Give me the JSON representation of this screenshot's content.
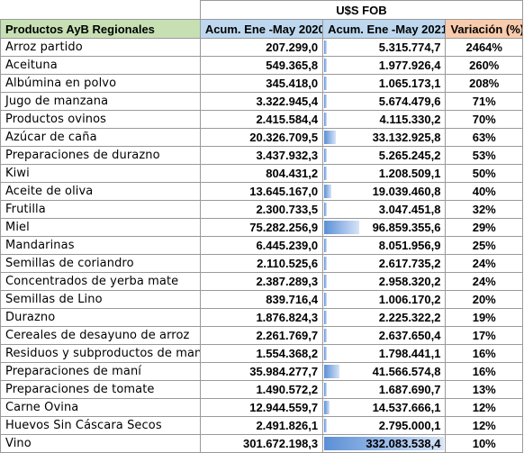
{
  "header": {
    "currency_label": "U$S FOB",
    "col_product": "Productos AyB Regionales",
    "col_2020": "Acum. Ene -May 2020",
    "col_2021": "Acum. Ene -May 2021",
    "col_var": "Variación (%)"
  },
  "bar_max_2021": 332083538.4,
  "rows": [
    {
      "product": "Arroz partido",
      "v2020": "207.299,0",
      "v2021": "5.315.774,7",
      "var": "2464%",
      "v2021_num": 5315774.7
    },
    {
      "product": "Aceituna",
      "v2020": "549.365,8",
      "v2021": "1.977.926,4",
      "var": "260%",
      "v2021_num": 1977926.4
    },
    {
      "product": "Albúmina en polvo",
      "v2020": "345.418,0",
      "v2021": "1.065.173,1",
      "var": "208%",
      "v2021_num": 1065173.1
    },
    {
      "product": "Jugo de manzana",
      "v2020": "3.322.945,4",
      "v2021": "5.674.479,6",
      "var": "71%",
      "v2021_num": 5674479.6
    },
    {
      "product": "Productos ovinos",
      "v2020": "2.415.584,4",
      "v2021": "4.115.330,2",
      "var": "70%",
      "v2021_num": 4115330.2
    },
    {
      "product": "Azúcar de caña",
      "v2020": "20.326.709,5",
      "v2021": "33.132.925,8",
      "var": "63%",
      "v2021_num": 33132925.8
    },
    {
      "product": "Preparaciones de durazno",
      "v2020": "3.437.932,3",
      "v2021": "5.265.245,2",
      "var": "53%",
      "v2021_num": 5265245.2
    },
    {
      "product": "Kiwi",
      "v2020": "804.431,2",
      "v2021": "1.208.509,1",
      "var": "50%",
      "v2021_num": 1208509.1
    },
    {
      "product": "Aceite de oliva",
      "v2020": "13.645.167,0",
      "v2021": "19.039.460,8",
      "var": "40%",
      "v2021_num": 19039460.8
    },
    {
      "product": "Frutilla",
      "v2020": "2.300.733,5",
      "v2021": "3.047.451,8",
      "var": "32%",
      "v2021_num": 3047451.8
    },
    {
      "product": "Miel",
      "v2020": "75.282.256,9",
      "v2021": "96.859.355,6",
      "var": "29%",
      "v2021_num": 96859355.6
    },
    {
      "product": "Mandarinas",
      "v2020": "6.445.239,0",
      "v2021": "8.051.956,9",
      "var": "25%",
      "v2021_num": 8051956.9
    },
    {
      "product": "Semillas de coriandro",
      "v2020": "2.110.525,6",
      "v2021": "2.617.735,2",
      "var": "24%",
      "v2021_num": 2617735.2
    },
    {
      "product": "Concentrados de yerba mate",
      "v2020": "2.387.289,3",
      "v2021": "2.958.320,2",
      "var": "24%",
      "v2021_num": 2958320.2
    },
    {
      "product": "Semillas de Lino",
      "v2020": "839.716,4",
      "v2021": "1.006.170,2",
      "var": "20%",
      "v2021_num": 1006170.2
    },
    {
      "product": "Durazno",
      "v2020": "1.876.824,3",
      "v2021": "2.225.322,2",
      "var": "19%",
      "v2021_num": 2225322.2
    },
    {
      "product": "Cereales de desayuno de arroz",
      "v2020": "2.261.769,7",
      "v2021": "2.637.650,4",
      "var": "17%",
      "v2021_num": 2637650.4
    },
    {
      "product": "Residuos y subproductos de maní",
      "v2020": "1.554.368,2",
      "v2021": "1.798.441,1",
      "var": "16%",
      "v2021_num": 1798441.1
    },
    {
      "product": "Preparaciones de maní",
      "v2020": "35.984.277,7",
      "v2021": "41.566.574,8",
      "var": "16%",
      "v2021_num": 41566574.8
    },
    {
      "product": "Preparaciones de tomate",
      "v2020": "1.490.572,2",
      "v2021": "1.687.690,7",
      "var": "13%",
      "v2021_num": 1687690.7
    },
    {
      "product": "Carne Ovina",
      "v2020": "12.944.559,7",
      "v2021": "14.537.666,1",
      "var": "12%",
      "v2021_num": 14537666.1
    },
    {
      "product": "Huevos Sin Cáscara Secos",
      "v2020": "2.491.826,1",
      "v2021": "2.795.000,1",
      "var": "12%",
      "v2021_num": 2795000.1
    },
    {
      "product": "Vino",
      "v2020": "301.672.198,3",
      "v2021": "332.083.538,4",
      "var": "10%",
      "v2021_num": 332083538.4
    }
  ]
}
